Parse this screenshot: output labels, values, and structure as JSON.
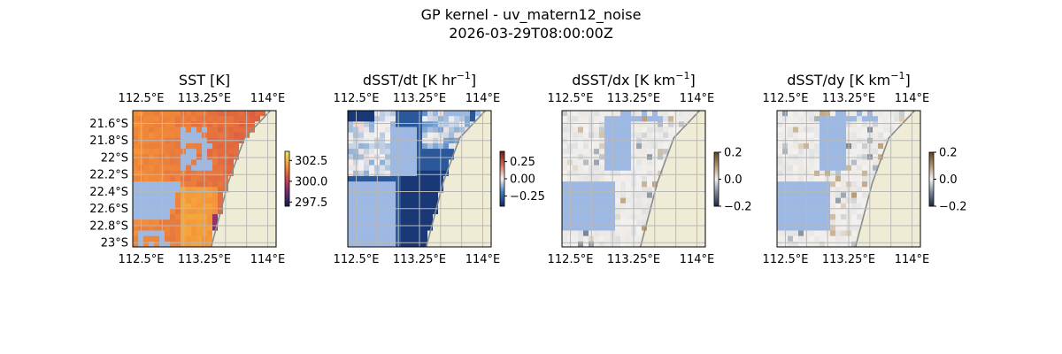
{
  "figure": {
    "title_line1": "GP kernel - uv_matern12_noise",
    "title_line2": "2026-03-29T08:00:00Z"
  },
  "colors": {
    "land": "#efecd6",
    "coast": "#8a8a8a",
    "masked": "#9db9e3",
    "grid": "#b8b8b8"
  },
  "chart_data": [
    {
      "type": "heatmap",
      "title_main": "SST [K]",
      "title_sup": "",
      "title_after": "",
      "colormap": "thermal (dark purple - red - orange - yellow)",
      "xlim": [
        112.4,
        114.1
      ],
      "ylim": [
        -23.05,
        -21.45
      ],
      "x_ticks": [
        "112.5°E",
        "113.25°E",
        "114°E"
      ],
      "y_ticks": [
        "21.6°S",
        "21.8°S",
        "22°S",
        "22.2°S",
        "22.4°S",
        "22.6°S",
        "22.8°S",
        "23°S"
      ],
      "colorbar_ticks": [
        "302.5",
        "300.0",
        "297.5"
      ],
      "colorbar_range": [
        297.0,
        303.6
      ]
    },
    {
      "type": "heatmap",
      "title_main": "dSST/dt [K hr",
      "title_sup": "−1",
      "title_after": "]",
      "colormap": "diverging blue - white - red",
      "xlim": [
        112.4,
        114.1
      ],
      "ylim": [
        -23.05,
        -21.45
      ],
      "x_ticks": [
        "112.5°E",
        "113.25°E",
        "114°E"
      ],
      "colorbar_ticks": [
        "0.25",
        "0.00",
        "−0.25"
      ],
      "colorbar_range": [
        -0.4,
        0.4
      ]
    },
    {
      "type": "heatmap",
      "title_main": "dSST/dx [K km",
      "title_sup": "−1",
      "title_after": "]",
      "colormap": "diverging slate - white - brown",
      "xlim": [
        112.4,
        114.1
      ],
      "ylim": [
        -23.05,
        -21.45
      ],
      "x_ticks": [
        "112.5°E",
        "113.25°E",
        "114°E"
      ],
      "colorbar_ticks": [
        "0.2",
        "0.0",
        "−0.2"
      ],
      "colorbar_range": [
        -0.2,
        0.2
      ]
    },
    {
      "type": "heatmap",
      "title_main": "dSST/dy [K km",
      "title_sup": "−1",
      "title_after": "]",
      "colormap": "diverging slate - white - brown",
      "xlim": [
        112.4,
        114.1
      ],
      "ylim": [
        -23.05,
        -21.45
      ],
      "x_ticks": [
        "112.5°E",
        "113.25°E",
        "114°E"
      ],
      "colorbar_ticks": [
        "0.2",
        "0.0",
        "−0.2"
      ],
      "colorbar_range": [
        -0.2,
        0.2
      ]
    }
  ]
}
